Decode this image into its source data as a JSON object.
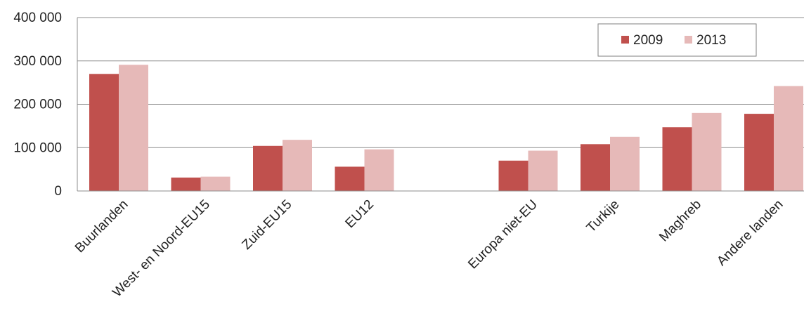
{
  "chart_data": {
    "type": "bar",
    "categories": [
      "Buurlanden",
      "West- en Noord-EU15",
      "Zuid-EU15",
      "EU12",
      "",
      "Europa niet-EU",
      "Turkije",
      "Maghreb",
      "Andere landen"
    ],
    "series": [
      {
        "name": "2009",
        "color": "#c0504d",
        "values": [
          270000,
          31000,
          104000,
          56000,
          null,
          70000,
          108000,
          147000,
          178000
        ]
      },
      {
        "name": "2013",
        "color": "#e6b9b8",
        "values": [
          291000,
          33000,
          118000,
          96000,
          null,
          93000,
          125000,
          180000,
          242000
        ]
      }
    ],
    "yticks": [
      "0",
      "100 000",
      "200 000",
      "300 000",
      "400 000"
    ],
    "ylim": [
      0,
      400000
    ],
    "grid": true,
    "legend_position": "top-right",
    "title": "",
    "xlabel": "",
    "ylabel": ""
  }
}
